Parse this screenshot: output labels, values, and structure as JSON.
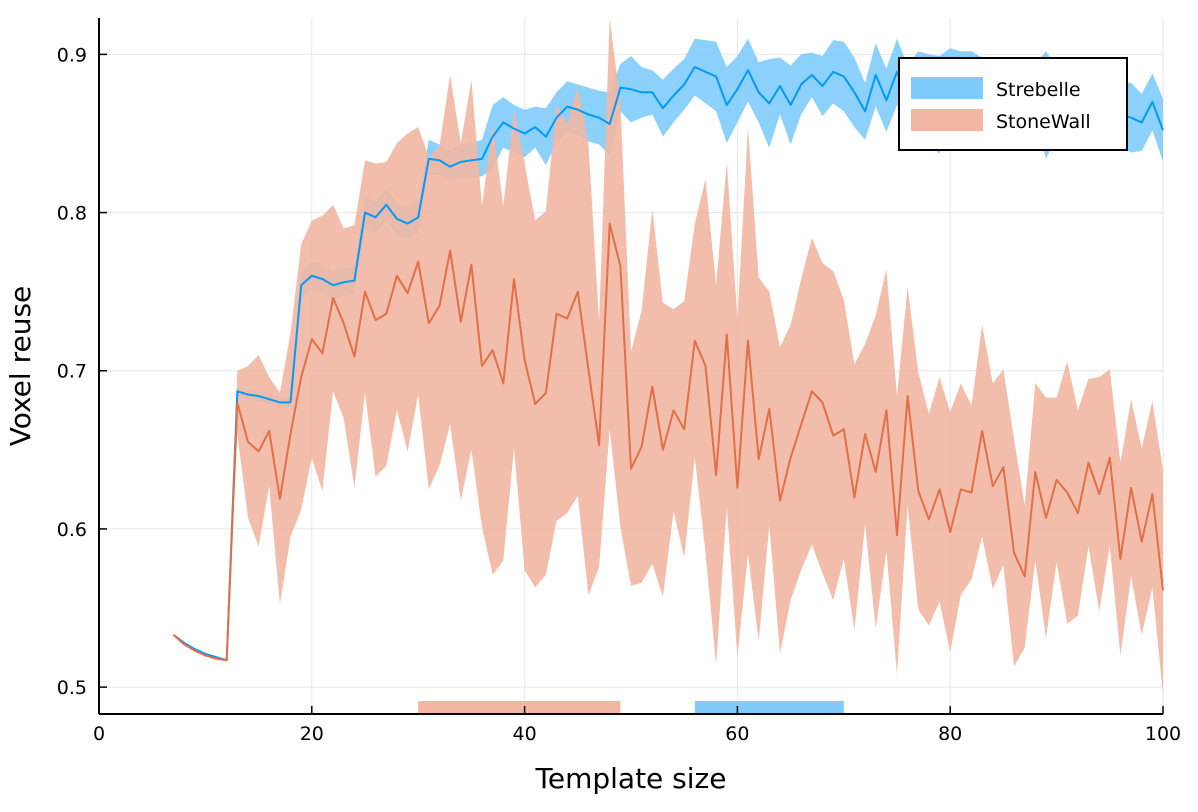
{
  "chart_data": {
    "type": "line",
    "title": "",
    "xlabel": "Template size",
    "ylabel": "Voxel reuse",
    "xlim": [
      0,
      100
    ],
    "ylim": [
      0.483,
      0.923
    ],
    "xticks": [
      0,
      20,
      40,
      60,
      80,
      100
    ],
    "yticks": [
      0.5,
      0.6,
      0.7,
      0.8,
      0.9
    ],
    "xtick_labels": [
      "0",
      "20",
      "40",
      "60",
      "80",
      "100"
    ],
    "ytick_labels": [
      "0.5",
      "0.6",
      "0.7",
      "0.8",
      "0.9"
    ],
    "grid": true,
    "legend_position": "top-right",
    "series": [
      {
        "name": "Strebelle",
        "color": "#009af9",
        "band_color": "#7fccfc",
        "x": [
          7,
          8,
          9,
          10,
          11,
          12,
          13,
          14,
          15,
          16,
          17,
          18,
          19,
          20,
          21,
          22,
          23,
          24,
          25,
          26,
          27,
          28,
          29,
          30,
          31,
          32,
          33,
          34,
          35,
          36,
          37,
          38,
          39,
          40,
          41,
          42,
          43,
          44,
          45,
          46,
          47,
          48,
          49,
          50,
          51,
          52,
          53,
          54,
          55,
          56,
          57,
          58,
          59,
          60,
          61,
          62,
          63,
          64,
          65,
          66,
          67,
          68,
          69,
          70,
          71,
          72,
          73,
          74,
          75,
          76,
          77,
          78,
          79,
          80,
          81,
          82,
          83,
          84,
          85,
          86,
          87,
          88,
          89,
          90,
          91,
          92,
          93,
          94,
          95,
          96,
          97,
          98,
          99,
          100
        ],
        "mean": [
          0.533,
          0.528,
          0.524,
          0.521,
          0.519,
          0.517,
          0.687,
          0.685,
          0.684,
          0.682,
          0.68,
          0.68,
          0.754,
          0.76,
          0.758,
          0.754,
          0.756,
          0.757,
          0.8,
          0.797,
          0.805,
          0.796,
          0.793,
          0.797,
          0.834,
          0.833,
          0.829,
          0.832,
          0.833,
          0.834,
          0.848,
          0.857,
          0.853,
          0.85,
          0.854,
          0.848,
          0.86,
          0.867,
          0.865,
          0.862,
          0.86,
          0.856,
          0.879,
          0.878,
          0.876,
          0.876,
          0.866,
          0.874,
          0.881,
          0.892,
          0.889,
          0.886,
          0.868,
          0.878,
          0.89,
          0.876,
          0.869,
          0.88,
          0.868,
          0.881,
          0.887,
          0.88,
          0.889,
          0.886,
          0.876,
          0.864,
          0.887,
          0.871,
          0.889,
          0.873,
          0.88,
          0.872,
          0.868,
          0.884,
          0.88,
          0.884,
          0.876,
          0.871,
          0.878,
          0.87,
          0.872,
          0.876,
          0.868,
          0.87,
          0.864,
          0.876,
          0.871,
          0.87,
          0.866,
          0.862,
          0.86,
          0.857,
          0.87,
          0.852
        ],
        "lower": [
          0.533,
          0.528,
          0.524,
          0.521,
          0.519,
          0.517,
          0.684,
          0.682,
          0.681,
          0.679,
          0.677,
          0.677,
          0.745,
          0.751,
          0.749,
          0.745,
          0.747,
          0.748,
          0.79,
          0.787,
          0.795,
          0.786,
          0.783,
          0.787,
          0.824,
          0.824,
          0.82,
          0.822,
          0.822,
          0.823,
          0.828,
          0.841,
          0.838,
          0.835,
          0.841,
          0.83,
          0.844,
          0.851,
          0.849,
          0.845,
          0.843,
          0.836,
          0.864,
          0.857,
          0.86,
          0.862,
          0.848,
          0.857,
          0.865,
          0.874,
          0.869,
          0.864,
          0.844,
          0.857,
          0.87,
          0.857,
          0.841,
          0.862,
          0.843,
          0.862,
          0.873,
          0.861,
          0.869,
          0.864,
          0.854,
          0.846,
          0.867,
          0.851,
          0.868,
          0.853,
          0.858,
          0.844,
          0.837,
          0.864,
          0.858,
          0.866,
          0.854,
          0.849,
          0.859,
          0.848,
          0.85,
          0.858,
          0.834,
          0.848,
          0.842,
          0.858,
          0.849,
          0.85,
          0.844,
          0.842,
          0.838,
          0.839,
          0.852,
          0.832
        ],
        "upper": [
          0.533,
          0.528,
          0.524,
          0.521,
          0.519,
          0.517,
          0.69,
          0.688,
          0.687,
          0.685,
          0.683,
          0.683,
          0.763,
          0.769,
          0.767,
          0.763,
          0.765,
          0.766,
          0.81,
          0.807,
          0.815,
          0.806,
          0.803,
          0.807,
          0.846,
          0.843,
          0.839,
          0.843,
          0.844,
          0.846,
          0.868,
          0.873,
          0.868,
          0.865,
          0.867,
          0.866,
          0.876,
          0.883,
          0.881,
          0.879,
          0.877,
          0.876,
          0.894,
          0.899,
          0.892,
          0.89,
          0.884,
          0.891,
          0.897,
          0.91,
          0.909,
          0.908,
          0.892,
          0.899,
          0.91,
          0.895,
          0.897,
          0.898,
          0.893,
          0.9,
          0.901,
          0.899,
          0.909,
          0.908,
          0.898,
          0.882,
          0.907,
          0.891,
          0.91,
          0.893,
          0.902,
          0.9,
          0.899,
          0.904,
          0.902,
          0.902,
          0.898,
          0.893,
          0.897,
          0.892,
          0.894,
          0.894,
          0.902,
          0.892,
          0.886,
          0.894,
          0.893,
          0.89,
          0.888,
          0.882,
          0.882,
          0.875,
          0.888,
          0.872
        ]
      },
      {
        "name": "StoneWall",
        "color": "#e26f46",
        "band_color": "#f1b7a2",
        "x": [
          7,
          8,
          9,
          10,
          11,
          12,
          13,
          14,
          15,
          16,
          17,
          18,
          19,
          20,
          21,
          22,
          23,
          24,
          25,
          26,
          27,
          28,
          29,
          30,
          31,
          32,
          33,
          34,
          35,
          36,
          37,
          38,
          39,
          40,
          41,
          42,
          43,
          44,
          45,
          46,
          47,
          48,
          49,
          50,
          51,
          52,
          53,
          54,
          55,
          56,
          57,
          58,
          59,
          60,
          61,
          62,
          63,
          64,
          65,
          66,
          67,
          68,
          69,
          70,
          71,
          72,
          73,
          74,
          75,
          76,
          77,
          78,
          79,
          80,
          81,
          82,
          83,
          84,
          85,
          86,
          87,
          88,
          89,
          90,
          91,
          92,
          93,
          94,
          95,
          96,
          97,
          98,
          99,
          100
        ],
        "mean": [
          0.533,
          0.527,
          0.523,
          0.52,
          0.518,
          0.517,
          0.68,
          0.655,
          0.649,
          0.662,
          0.619,
          0.66,
          0.696,
          0.72,
          0.711,
          0.746,
          0.73,
          0.709,
          0.75,
          0.732,
          0.736,
          0.76,
          0.749,
          0.769,
          0.73,
          0.741,
          0.776,
          0.731,
          0.767,
          0.703,
          0.713,
          0.692,
          0.758,
          0.707,
          0.679,
          0.686,
          0.736,
          0.733,
          0.75,
          0.701,
          0.653,
          0.793,
          0.766,
          0.638,
          0.652,
          0.69,
          0.65,
          0.675,
          0.663,
          0.719,
          0.703,
          0.634,
          0.723,
          0.626,
          0.719,
          0.644,
          0.676,
          0.618,
          0.645,
          0.666,
          0.687,
          0.68,
          0.659,
          0.663,
          0.62,
          0.66,
          0.636,
          0.675,
          0.596,
          0.684,
          0.624,
          0.606,
          0.625,
          0.598,
          0.625,
          0.623,
          0.662,
          0.627,
          0.639,
          0.585,
          0.57,
          0.636,
          0.607,
          0.631,
          0.623,
          0.61,
          0.642,
          0.622,
          0.645,
          0.581,
          0.626,
          0.592,
          0.622,
          0.561
        ],
        "lower": [
          0.533,
          0.527,
          0.523,
          0.52,
          0.518,
          0.517,
          0.66,
          0.607,
          0.589,
          0.627,
          0.552,
          0.595,
          0.612,
          0.645,
          0.624,
          0.687,
          0.67,
          0.626,
          0.686,
          0.633,
          0.64,
          0.675,
          0.649,
          0.685,
          0.625,
          0.64,
          0.666,
          0.618,
          0.65,
          0.601,
          0.571,
          0.58,
          0.651,
          0.574,
          0.563,
          0.571,
          0.605,
          0.61,
          0.621,
          0.558,
          0.576,
          0.663,
          0.601,
          0.564,
          0.566,
          0.578,
          0.557,
          0.611,
          0.582,
          0.645,
          0.585,
          0.514,
          0.614,
          0.519,
          0.584,
          0.529,
          0.602,
          0.521,
          0.555,
          0.574,
          0.59,
          0.572,
          0.555,
          0.581,
          0.536,
          0.603,
          0.537,
          0.586,
          0.508,
          0.615,
          0.549,
          0.539,
          0.554,
          0.522,
          0.558,
          0.568,
          0.595,
          0.562,
          0.577,
          0.513,
          0.525,
          0.58,
          0.531,
          0.579,
          0.54,
          0.545,
          0.589,
          0.548,
          0.589,
          0.52,
          0.57,
          0.533,
          0.563,
          0.495
        ],
        "upper": [
          0.533,
          0.527,
          0.523,
          0.52,
          0.518,
          0.517,
          0.7,
          0.703,
          0.71,
          0.696,
          0.686,
          0.724,
          0.78,
          0.795,
          0.798,
          0.805,
          0.79,
          0.792,
          0.833,
          0.831,
          0.832,
          0.844,
          0.85,
          0.854,
          0.835,
          0.842,
          0.887,
          0.844,
          0.884,
          0.804,
          0.856,
          0.804,
          0.865,
          0.831,
          0.795,
          0.801,
          0.868,
          0.856,
          0.879,
          0.844,
          0.731,
          0.923,
          0.869,
          0.712,
          0.738,
          0.802,
          0.743,
          0.739,
          0.744,
          0.793,
          0.821,
          0.754,
          0.832,
          0.733,
          0.854,
          0.759,
          0.75,
          0.715,
          0.729,
          0.758,
          0.784,
          0.768,
          0.763,
          0.745,
          0.704,
          0.717,
          0.735,
          0.764,
          0.684,
          0.753,
          0.699,
          0.673,
          0.696,
          0.674,
          0.692,
          0.678,
          0.729,
          0.692,
          0.701,
          0.657,
          0.615,
          0.692,
          0.683,
          0.683,
          0.706,
          0.675,
          0.695,
          0.696,
          0.701,
          0.642,
          0.682,
          0.651,
          0.681,
          0.637
        ]
      }
    ],
    "range_markers": [
      {
        "series": "StoneWall",
        "x_start": 30,
        "x_end": 49
      },
      {
        "series": "Strebelle",
        "x_start": 56,
        "x_end": 70
      }
    ]
  }
}
